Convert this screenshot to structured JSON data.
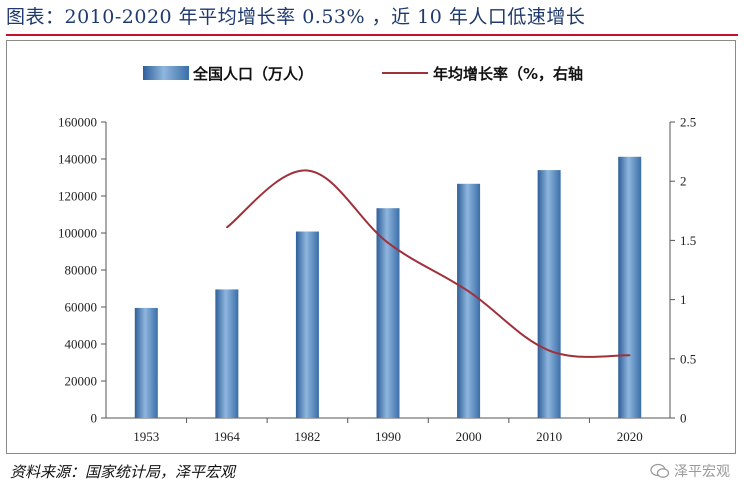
{
  "title": "图表：2010-2020 年平均增长率 0.53% ，近 10 年人口低速增长",
  "source": "资料来源：国家统计局，泽平宏观",
  "watermark": "泽平宏观",
  "colors": {
    "bar": "#4a7fb8",
    "line": "#a0303a",
    "title": "#1f3a6e",
    "rule": "#c8102e"
  },
  "chart_data": {
    "type": "bar",
    "categories": [
      "1953",
      "1964",
      "1982",
      "1990",
      "2000",
      "2010",
      "2020"
    ],
    "series": [
      {
        "name": "全国人口（万人）",
        "type": "bar",
        "axis": "left",
        "values": [
          59500,
          69500,
          100800,
          113400,
          126600,
          134000,
          141200
        ]
      },
      {
        "name": "年均增长率（%，右轴",
        "type": "line",
        "axis": "right",
        "values": [
          null,
          1.61,
          2.09,
          1.48,
          1.07,
          0.57,
          0.53
        ]
      }
    ],
    "y_left": {
      "min": 0,
      "max": 160000,
      "ticks": [
        "0",
        "20000",
        "40000",
        "60000",
        "80000",
        "100000",
        "120000",
        "140000",
        "160000"
      ]
    },
    "y_right": {
      "min": 0,
      "max": 2.5,
      "ticks": [
        "0",
        "0.5",
        "1",
        "1.5",
        "2",
        "2.5"
      ]
    },
    "legend_position": "top",
    "grid": false
  }
}
